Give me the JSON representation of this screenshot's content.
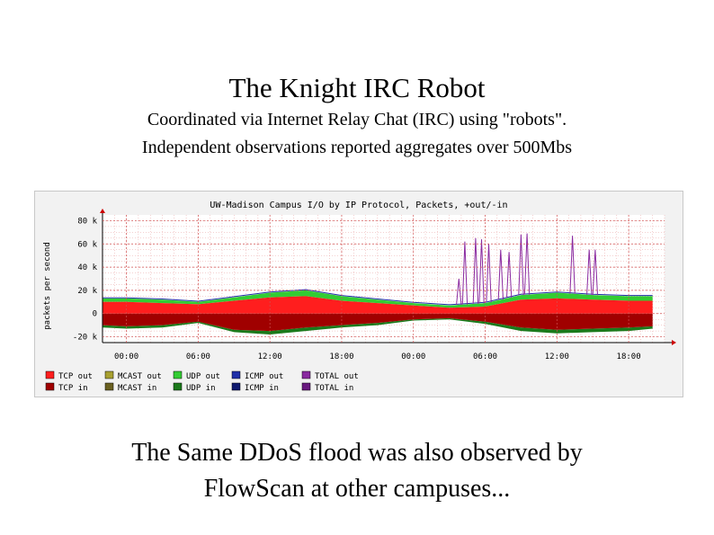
{
  "slide": {
    "title": "The Knight IRC Robot",
    "subtitle_line1": "Coordinated via Internet Relay Chat (IRC) using \"robots\".",
    "subtitle_line2": "Independent observations reported aggregates over 500Mbs",
    "footer_line1": "The Same DDoS flood was also observed by",
    "footer_line2": "FlowScan at other campuses..."
  },
  "colors": {
    "tcp_out": "#ff1e1e",
    "tcp_in": "#a00000",
    "udp_out": "#33cc33",
    "udp_in": "#1b7a1b",
    "icmp": "#1f2fa8",
    "total": "#8a2aa0",
    "grid": "#e8a0a0",
    "plot_bg": "#ffffff"
  },
  "chart_data": {
    "type": "area",
    "title": "UW-Madison Campus I/O by IP Protocol, Packets, +out/-in",
    "ylabel": "packets per second",
    "ylim": [
      -25,
      85
    ],
    "yticks": [
      80,
      60,
      40,
      20,
      0,
      -20
    ],
    "ytick_labels": [
      "80 k",
      "60 k",
      "40 k",
      "20 k",
      "0",
      "-20 k"
    ],
    "xlim": [
      -2,
      45
    ],
    "xticks": [
      0,
      6,
      12,
      18,
      24,
      30,
      36,
      42
    ],
    "xtick_labels": [
      "00:00",
      "06:00",
      "12:00",
      "18:00",
      "00:00",
      "06:00",
      "12:00",
      "18:00"
    ],
    "x": [
      -2,
      0,
      3,
      6,
      9,
      12,
      15,
      18,
      21,
      24,
      27,
      30,
      33,
      36,
      39,
      42,
      44
    ],
    "series": [
      {
        "name": "TCP out",
        "values": [
          10,
          10,
          9,
          8,
          11,
          14,
          15,
          11,
          9,
          7,
          5,
          6,
          12,
          13,
          12,
          11,
          11
        ]
      },
      {
        "name": "UDP out",
        "values": [
          3,
          3,
          3,
          2,
          3,
          4,
          5,
          4,
          3,
          2,
          2,
          3,
          4,
          5,
          4,
          4,
          4
        ]
      },
      {
        "name": "TCP in",
        "values": [
          -10,
          -11,
          -10,
          -7,
          -14,
          -15,
          -12,
          -10,
          -8,
          -5,
          -4,
          -7,
          -12,
          -14,
          -13,
          -12,
          -11
        ]
      },
      {
        "name": "UDP in",
        "values": [
          -2,
          -2,
          -2,
          -1,
          -2,
          -3,
          -3,
          -2,
          -2,
          -1,
          -1,
          -2,
          -3,
          -3,
          -3,
          -3,
          -2
        ]
      }
    ],
    "total_out_spikes": [
      {
        "x": 27.8,
        "y": 30
      },
      {
        "x": 28.3,
        "y": 62
      },
      {
        "x": 29.2,
        "y": 65
      },
      {
        "x": 29.7,
        "y": 64
      },
      {
        "x": 30.3,
        "y": 60
      },
      {
        "x": 31.3,
        "y": 55
      },
      {
        "x": 32.0,
        "y": 53
      },
      {
        "x": 33.0,
        "y": 68
      },
      {
        "x": 33.5,
        "y": 69
      },
      {
        "x": 37.3,
        "y": 67
      },
      {
        "x": 38.7,
        "y": 55
      },
      {
        "x": 39.2,
        "y": 55
      }
    ],
    "legend": [
      {
        "label": "TCP out",
        "color": "#ff1e1e"
      },
      {
        "label": "MCAST out",
        "color": "#a8a030"
      },
      {
        "label": "UDP out",
        "color": "#33cc33"
      },
      {
        "label": "ICMP out",
        "color": "#1f2fa8"
      },
      {
        "label": "TOTAL out",
        "color": "#8a2aa0"
      },
      {
        "label": "TCP in",
        "color": "#a00000"
      },
      {
        "label": "MCAST in",
        "color": "#6a6020"
      },
      {
        "label": "UDP in",
        "color": "#1b7a1b"
      },
      {
        "label": "ICMP in",
        "color": "#101a70"
      },
      {
        "label": "TOTAL in",
        "color": "#6a1a80"
      }
    ],
    "legend_placement": "bottom",
    "grid": true
  }
}
